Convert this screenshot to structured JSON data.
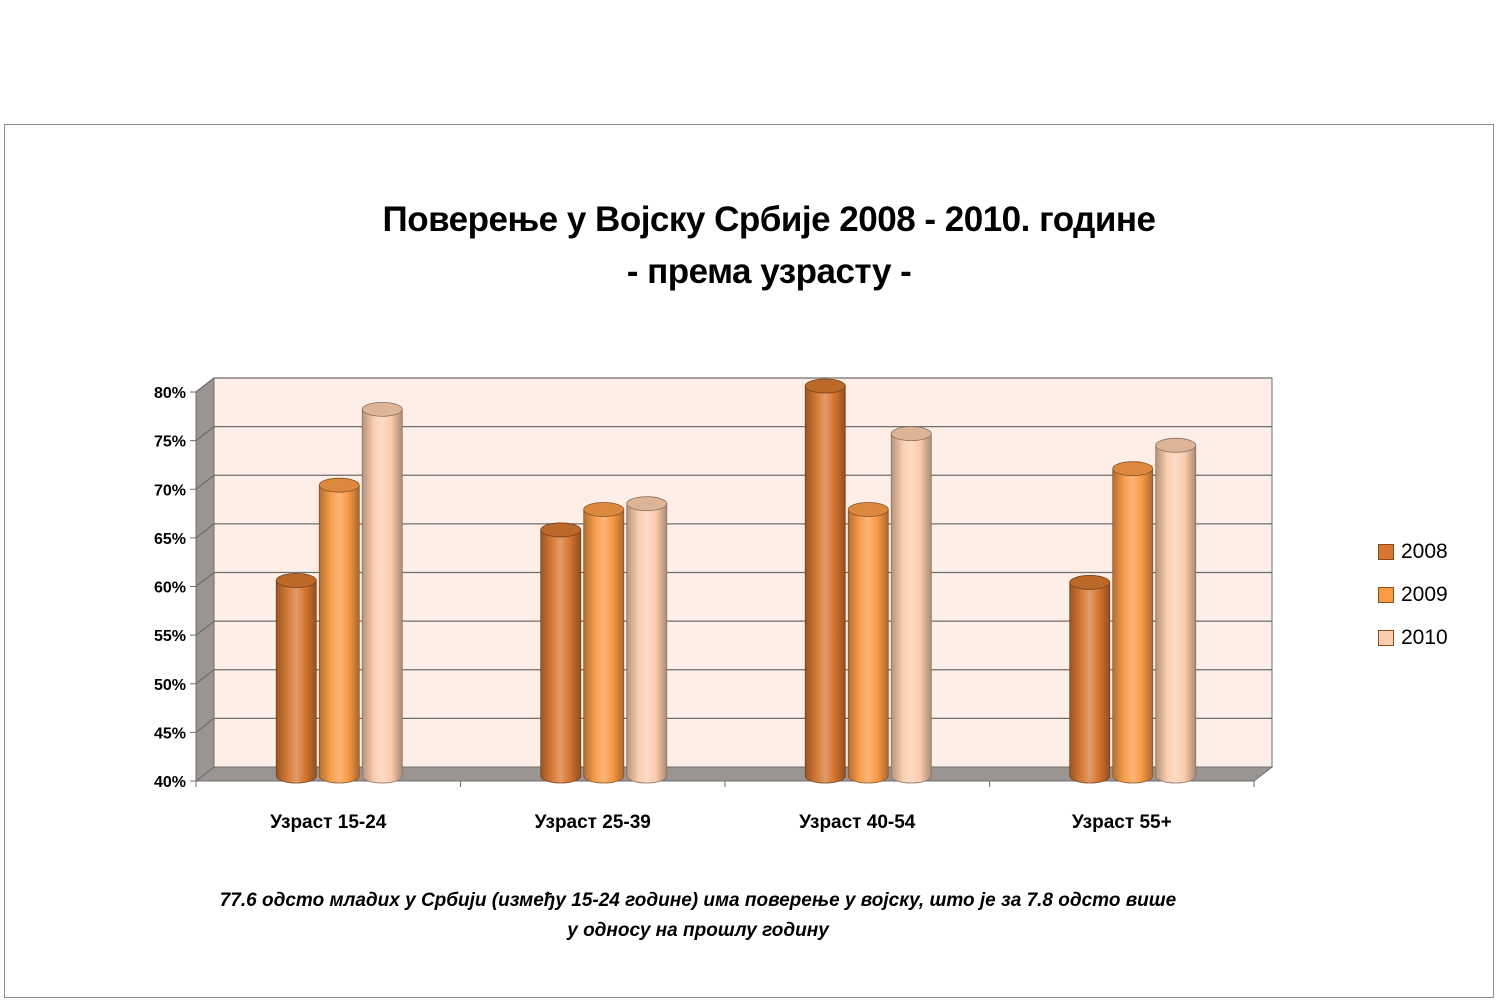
{
  "chart_data": {
    "type": "bar",
    "title": "Поверење у Војску Србије 2008 - 2010. године",
    "subtitle": "- према узрасту -",
    "categories": [
      "Узраст 15-24",
      "Узраст 25-39",
      "Узраст 40-54",
      "Узраст 55+"
    ],
    "series": [
      {
        "name": "2008",
        "values": [
          60,
          65.2,
          80,
          59.8
        ],
        "color": "#d6762f"
      },
      {
        "name": "2009",
        "values": [
          69.8,
          67.3,
          67.3,
          71.5
        ],
        "color": "#fa9a45"
      },
      {
        "name": "2010",
        "values": [
          77.6,
          67.9,
          75.1,
          73.9
        ],
        "color": "#fcccad"
      }
    ],
    "y_ticks": [
      "40%",
      "45%",
      "50%",
      "55%",
      "60%",
      "65%",
      "70%",
      "75%",
      "80%"
    ],
    "ylim": [
      40,
      80
    ],
    "unit": "%",
    "grid": true,
    "legend_position": "right",
    "three_d": true,
    "wall_color": "#fdeee8",
    "caption_lines": [
      "77.6 одсто младих у Србији (између 15-24 године) има поверење у војску, што је за 7.8 одсто више",
      "у односу на прошлу годину"
    ]
  }
}
